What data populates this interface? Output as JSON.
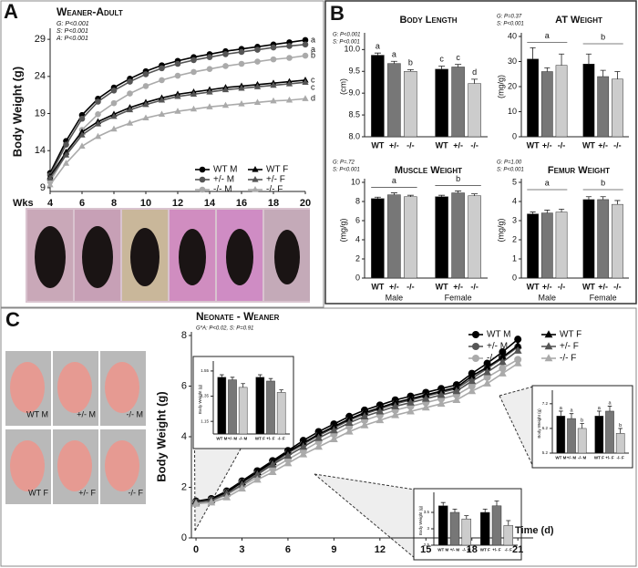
{
  "photos": [
    "WT M",
    "+/- M",
    "-/- M",
    "WT F",
    "+/- F",
    "-/- F"
  ],
  "chart_data": [
    {
      "type": "line",
      "panel": "A",
      "title": "Weaner-Adult",
      "stats": [
        "G: P<0.001",
        "S: P<0.001",
        "A: P<0.001"
      ],
      "ylabel": "Body Weight (g)",
      "xlabel": "Wks",
      "x": [
        4,
        5,
        6,
        7,
        8,
        9,
        10,
        11,
        12,
        13,
        14,
        15,
        16,
        17,
        18,
        19,
        20
      ],
      "xlim": [
        4,
        20
      ],
      "xticks": [
        4,
        6,
        8,
        10,
        12,
        14,
        16,
        18,
        20
      ],
      "ylim": [
        8.5,
        30
      ],
      "yticks": [
        9,
        14,
        19,
        24,
        29
      ],
      "series": [
        {
          "name": "WT M",
          "color": "#000000",
          "marker": "circle",
          "end_label": "a",
          "values": [
            11,
            15.3,
            18.8,
            21,
            22.5,
            23.7,
            24.7,
            25.5,
            26.1,
            26.6,
            27,
            27.4,
            27.7,
            28,
            28.3,
            28.6,
            28.9
          ]
        },
        {
          "name": "+/- M",
          "color": "#555555",
          "marker": "circle",
          "end_label": "a",
          "values": [
            10.7,
            14.8,
            18.3,
            20.6,
            22.1,
            23.3,
            24.3,
            25.1,
            25.7,
            26.2,
            26.6,
            27,
            27.3,
            27.6,
            27.9,
            28.1,
            28.3
          ]
        },
        {
          "name": "-/- M",
          "color": "#aaaaaa",
          "marker": "circle",
          "end_label": "b",
          "values": [
            9.8,
            13.5,
            16.8,
            18.9,
            20.4,
            21.7,
            22.7,
            23.5,
            24.1,
            24.6,
            25,
            25.4,
            25.7,
            26,
            26.3,
            26.5,
            26.8
          ]
        },
        {
          "name": "WT F",
          "color": "#000000",
          "marker": "triangle",
          "end_label": "c",
          "values": [
            10.5,
            13.8,
            16.5,
            17.9,
            18.9,
            19.8,
            20.5,
            21.1,
            21.6,
            21.9,
            22.2,
            22.5,
            22.7,
            22.9,
            23.1,
            23.3,
            23.5
          ]
        },
        {
          "name": "+/- F",
          "color": "#555555",
          "marker": "triangle",
          "end_label": "c",
          "values": [
            10.3,
            13.4,
            16.1,
            17.6,
            18.6,
            19.5,
            20.2,
            20.8,
            21.3,
            21.6,
            21.9,
            22.2,
            22.4,
            22.6,
            22.8,
            23,
            23.2
          ]
        },
        {
          "name": "-/- F",
          "color": "#aaaaaa",
          "marker": "triangle",
          "end_label": "d",
          "values": [
            9.4,
            12.3,
            14.6,
            15.9,
            16.9,
            17.7,
            18.4,
            18.9,
            19.3,
            19.6,
            19.9,
            20.1,
            20.3,
            20.5,
            20.7,
            20.8,
            21
          ]
        }
      ]
    },
    {
      "type": "bar",
      "panel": "B",
      "title": "Body Length",
      "stats": [
        "G: P<0.001",
        "S: P<0.001"
      ],
      "ylabel": "(cm)",
      "categories": [
        "WT",
        "+/-",
        "-/-",
        "WT",
        "+/-",
        "-/-"
      ],
      "colors": [
        "#000000",
        "#777777",
        "#cccccc",
        "#000000",
        "#777777",
        "#cccccc"
      ],
      "values": [
        9.87,
        9.68,
        9.5,
        9.55,
        9.6,
        9.22
      ],
      "errors": [
        0.05,
        0.05,
        0.04,
        0.07,
        0.06,
        0.1
      ],
      "letters": [
        "a",
        "a",
        "b",
        "c",
        "c",
        "d"
      ],
      "ylim": [
        8,
        10.3
      ],
      "yticks": [
        {
          "value": 8,
          "label": "8.0"
        },
        8.5,
        {
          "value": 9,
          "label": "9.0"
        },
        9.5,
        {
          "value": 10,
          "label": "10.0"
        }
      ]
    },
    {
      "type": "bar",
      "title": "AT Weight",
      "stats": [
        "G: P=0.37",
        "S: P<0.001"
      ],
      "ylabel": "(mg/g)",
      "categories": [
        "WT",
        "+/-",
        "-/-",
        "WT",
        "+/-",
        "-/-"
      ],
      "colors": [
        "#000000",
        "#777777",
        "#cccccc",
        "#000000",
        "#777777",
        "#cccccc"
      ],
      "values": [
        31,
        26,
        28.5,
        29,
        24,
        23
      ],
      "errors": [
        4.5,
        1.5,
        4.5,
        4,
        2.5,
        3
      ],
      "group_letters": [
        "a",
        "b"
      ],
      "ylim": [
        0,
        40
      ],
      "yticks": [
        0,
        10,
        20,
        30,
        40
      ]
    },
    {
      "type": "bar",
      "title": "Muscle Weight",
      "stats": [
        "G: P=.72",
        "S: P<0.001"
      ],
      "ylabel": "(mg/g)",
      "categories": [
        "WT",
        "+/-",
        "-/-",
        "WT",
        "+/-",
        "-/-"
      ],
      "colors": [
        "#000000",
        "#777777",
        "#cccccc",
        "#000000",
        "#777777",
        "#cccccc"
      ],
      "values": [
        8.3,
        8.7,
        8.5,
        8.5,
        8.9,
        8.6
      ],
      "errors": [
        0.15,
        0.2,
        0.15,
        0.15,
        0.2,
        0.2
      ],
      "group_letters": [
        "a",
        "b"
      ],
      "groups": [
        "Male",
        "Female"
      ],
      "ylim": [
        0,
        10
      ],
      "yticks": [
        0,
        2,
        4,
        6,
        8,
        10
      ]
    },
    {
      "type": "bar",
      "title": "Femur Weight",
      "stats": [
        "G: P=1.00",
        "S: P<0.001"
      ],
      "ylabel": "(mg/g)",
      "categories": [
        "WT",
        "+/-",
        "-/-",
        "WT",
        "+/-",
        "-/-"
      ],
      "colors": [
        "#000000",
        "#777777",
        "#cccccc",
        "#000000",
        "#777777",
        "#cccccc"
      ],
      "values": [
        3.35,
        3.4,
        3.45,
        4.1,
        4.1,
        3.85
      ],
      "errors": [
        0.1,
        0.15,
        0.15,
        0.15,
        0.15,
        0.2
      ],
      "group_letters": [
        "a",
        "b"
      ],
      "groups": [
        "Male",
        "Female"
      ],
      "ylim": [
        0,
        5
      ],
      "yticks": [
        0,
        1,
        2,
        3,
        4,
        5
      ]
    },
    {
      "type": "line",
      "panel": "C",
      "title": "Neonate - Weaner",
      "stats": [
        "G*A: P<0.02, S: P=0.91"
      ],
      "ylabel": "Body Weight (g)",
      "xlabel": "Time (d)",
      "x": [
        0,
        1,
        2,
        3,
        4,
        5,
        6,
        7,
        8,
        9,
        10,
        11,
        12,
        13,
        14,
        15,
        16,
        17,
        18,
        19,
        20,
        21
      ],
      "xlim": [
        -0.3,
        22
      ],
      "xticks": [
        0,
        3,
        6,
        9,
        12,
        15,
        18,
        21
      ],
      "ylim": [
        0,
        8
      ],
      "yticks": [
        0,
        2,
        4,
        6,
        8
      ],
      "series": [
        {
          "name": "WT M",
          "color": "#000000",
          "marker": "circle",
          "values": [
            1.45,
            1.55,
            1.85,
            2.25,
            2.65,
            3.05,
            3.45,
            3.85,
            4.2,
            4.5,
            4.8,
            5.05,
            5.25,
            5.45,
            5.6,
            5.75,
            5.9,
            6.05,
            6.5,
            6.9,
            7.35,
            7.85
          ]
        },
        {
          "name": "+/- M",
          "color": "#555555",
          "marker": "circle",
          "values": [
            1.42,
            1.5,
            1.8,
            2.2,
            2.55,
            2.95,
            3.35,
            3.7,
            4.05,
            4.35,
            4.65,
            4.9,
            5.1,
            5.3,
            5.45,
            5.6,
            5.75,
            5.9,
            6.3,
            6.7,
            7.1,
            7.55
          ]
        },
        {
          "name": "-/- M",
          "color": "#aaaaaa",
          "marker": "circle",
          "values": [
            1.38,
            1.45,
            1.7,
            2.05,
            2.4,
            2.75,
            3.1,
            3.45,
            3.8,
            4.1,
            4.4,
            4.65,
            4.85,
            5.05,
            5.2,
            5.35,
            5.5,
            5.65,
            6.0,
            6.35,
            6.7,
            7.05
          ]
        },
        {
          "name": "WT F",
          "color": "#000000",
          "marker": "triangle",
          "values": [
            1.45,
            1.52,
            1.8,
            2.2,
            2.6,
            3.0,
            3.4,
            3.75,
            4.1,
            4.4,
            4.7,
            4.95,
            5.15,
            5.35,
            5.5,
            5.65,
            5.8,
            5.95,
            6.4,
            6.75,
            7.15,
            7.6
          ]
        },
        {
          "name": "+/- F",
          "color": "#555555",
          "marker": "triangle",
          "values": [
            1.4,
            1.48,
            1.75,
            2.1,
            2.5,
            2.9,
            3.25,
            3.6,
            3.95,
            4.25,
            4.55,
            4.8,
            5.0,
            5.2,
            5.35,
            5.5,
            5.65,
            5.8,
            6.2,
            6.55,
            6.95,
            7.4
          ]
        },
        {
          "name": "-/- F",
          "color": "#aaaaaa",
          "marker": "triangle",
          "values": [
            1.35,
            1.4,
            1.6,
            1.95,
            2.3,
            2.6,
            2.95,
            3.3,
            3.6,
            3.9,
            4.2,
            4.45,
            4.65,
            4.85,
            5.0,
            5.15,
            5.3,
            5.45,
            5.8,
            6.1,
            6.5,
            6.9
          ]
        }
      ]
    },
    {
      "type": "bar",
      "ylabel": "Body Weight (g)",
      "categories": [
        "WT M",
        "+/- M",
        "-/- M",
        "WT F",
        "+/- F",
        "-/- F"
      ],
      "colors": [
        "#000000",
        "#777777",
        "#cccccc",
        "#000000",
        "#777777",
        "#cccccc"
      ],
      "values": [
        1.5,
        1.48,
        1.42,
        1.5,
        1.47,
        1.38
      ],
      "errors": [
        0.02,
        0.02,
        0.03,
        0.02,
        0.02,
        0.02
      ],
      "ylim": [
        1.05,
        1.6
      ],
      "yticks": [
        1.15,
        1.35,
        1.55
      ]
    },
    {
      "type": "bar",
      "ylabel": "Body Weight (g)",
      "categories": [
        "WT M",
        "+/- M",
        "-/- M",
        "WT F",
        "+/- F",
        "-/- F"
      ],
      "colors": [
        "#000000",
        "#777777",
        "#cccccc",
        "#000000",
        "#777777",
        "#cccccc"
      ],
      "values": [
        3.7,
        3.5,
        3.3,
        3.5,
        3.7,
        3.1
      ],
      "errors": [
        0.1,
        0.1,
        0.1,
        0.1,
        0.15,
        0.15
      ],
      "ylim": [
        2.5,
        4
      ],
      "yticks": [
        2.5,
        3,
        3.5
      ]
    },
    {
      "type": "bar",
      "ylabel": "Body Weight (g)",
      "categories": [
        "WT M",
        "+/- M",
        "-/- M",
        "WT F",
        "+/- F",
        "-/- F"
      ],
      "colors": [
        "#000000",
        "#777777",
        "#cccccc",
        "#000000",
        "#777777",
        "#cccccc"
      ],
      "values": [
        6.7,
        6.6,
        6.2,
        6.7,
        6.9,
        6.0
      ],
      "errors": [
        0.2,
        0.2,
        0.2,
        0.2,
        0.2,
        0.2
      ],
      "letters": [
        "a",
        "a",
        "b",
        "a",
        "a",
        "b"
      ],
      "ylim": [
        5.2,
        7.6
      ],
      "yticks": [
        5.2,
        6.2,
        7.2
      ]
    }
  ]
}
